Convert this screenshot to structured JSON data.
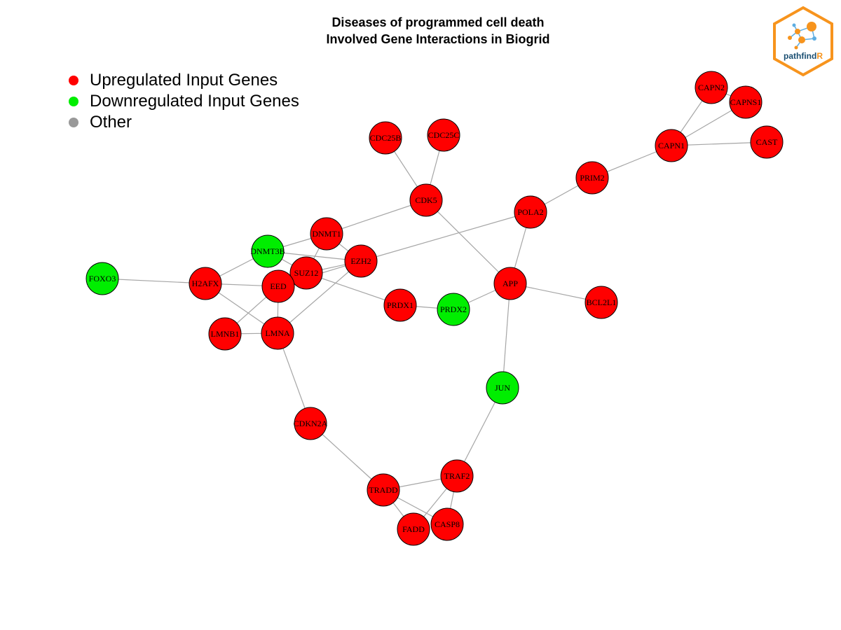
{
  "title": {
    "line1": "Diseases of programmed cell death",
    "line2": "Involved Gene Interactions in Biogrid"
  },
  "legend": [
    {
      "label": "Upregulated Input Genes",
      "color": "#ff0000"
    },
    {
      "label": "Downregulated Input Genes",
      "color": "#00ee00"
    },
    {
      "label": "Other",
      "color": "#999999"
    }
  ],
  "logo": {
    "text_main": "pathfind",
    "text_accent": "R",
    "border_color": "#f7941d",
    "accent_color": "#f7941d",
    "text_color": "#1b4f72"
  },
  "node_colors": {
    "up": "#ff0000",
    "down": "#00ee00",
    "other": "#999999"
  },
  "nodes": [
    {
      "id": "CAPN2",
      "status": "up"
    },
    {
      "id": "CAPNS1",
      "status": "up"
    },
    {
      "id": "CAPN1",
      "status": "up"
    },
    {
      "id": "CAST",
      "status": "up"
    },
    {
      "id": "CDC25B",
      "status": "up"
    },
    {
      "id": "CDC25C",
      "status": "up"
    },
    {
      "id": "PRIM2",
      "status": "up"
    },
    {
      "id": "CDK5",
      "status": "up"
    },
    {
      "id": "POLA2",
      "status": "up"
    },
    {
      "id": "DNMT1",
      "status": "up"
    },
    {
      "id": "DNMT3B",
      "status": "down"
    },
    {
      "id": "EZH2",
      "status": "up"
    },
    {
      "id": "SUZ12",
      "status": "up"
    },
    {
      "id": "FOXO3",
      "status": "down"
    },
    {
      "id": "H2AFX",
      "status": "up"
    },
    {
      "id": "EED",
      "status": "up"
    },
    {
      "id": "APP",
      "status": "up"
    },
    {
      "id": "BCL2L1",
      "status": "up"
    },
    {
      "id": "PRDX1",
      "status": "up"
    },
    {
      "id": "PRDX2",
      "status": "down"
    },
    {
      "id": "LMNB1",
      "status": "up"
    },
    {
      "id": "LMNA",
      "status": "up"
    },
    {
      "id": "JUN",
      "status": "down"
    },
    {
      "id": "CDKN2A",
      "status": "up"
    },
    {
      "id": "TRAF2",
      "status": "up"
    },
    {
      "id": "TRADD",
      "status": "up"
    },
    {
      "id": "FADD",
      "status": "up"
    },
    {
      "id": "CASP8",
      "status": "up"
    }
  ],
  "edges": [
    [
      "CAPN2",
      "CAPN1"
    ],
    [
      "CAPN2",
      "CAPNS1"
    ],
    [
      "CAPNS1",
      "CAPN1"
    ],
    [
      "CAPN1",
      "CAST"
    ],
    [
      "CAPN1",
      "PRIM2"
    ],
    [
      "PRIM2",
      "POLA2"
    ],
    [
      "CDC25B",
      "CDK5"
    ],
    [
      "CDC25C",
      "CDK5"
    ],
    [
      "CDK5",
      "DNMT1"
    ],
    [
      "CDK5",
      "APP"
    ],
    [
      "POLA2",
      "EZH2"
    ],
    [
      "POLA2",
      "APP"
    ],
    [
      "DNMT1",
      "DNMT3B"
    ],
    [
      "DNMT1",
      "SUZ12"
    ],
    [
      "DNMT1",
      "EZH2"
    ],
    [
      "DNMT3B",
      "EZH2"
    ],
    [
      "DNMT3B",
      "H2AFX"
    ],
    [
      "DNMT3B",
      "SUZ12"
    ],
    [
      "EZH2",
      "SUZ12"
    ],
    [
      "EZH2",
      "EED"
    ],
    [
      "EZH2",
      "LMNA"
    ],
    [
      "SUZ12",
      "PRDX1"
    ],
    [
      "SUZ12",
      "EED"
    ],
    [
      "FOXO3",
      "H2AFX"
    ],
    [
      "H2AFX",
      "EED"
    ],
    [
      "H2AFX",
      "LMNA"
    ],
    [
      "EED",
      "LMNA"
    ],
    [
      "EED",
      "LMNB1"
    ],
    [
      "LMNB1",
      "LMNA"
    ],
    [
      "PRDX1",
      "PRDX2"
    ],
    [
      "PRDX2",
      "APP"
    ],
    [
      "APP",
      "BCL2L1"
    ],
    [
      "APP",
      "JUN"
    ],
    [
      "LMNA",
      "CDKN2A"
    ],
    [
      "CDKN2A",
      "TRADD"
    ],
    [
      "JUN",
      "TRAF2"
    ],
    [
      "TRAF2",
      "TRADD"
    ],
    [
      "TRAF2",
      "FADD"
    ],
    [
      "TRAF2",
      "CASP8"
    ],
    [
      "TRADD",
      "FADD"
    ],
    [
      "TRADD",
      "CASP8"
    ]
  ]
}
